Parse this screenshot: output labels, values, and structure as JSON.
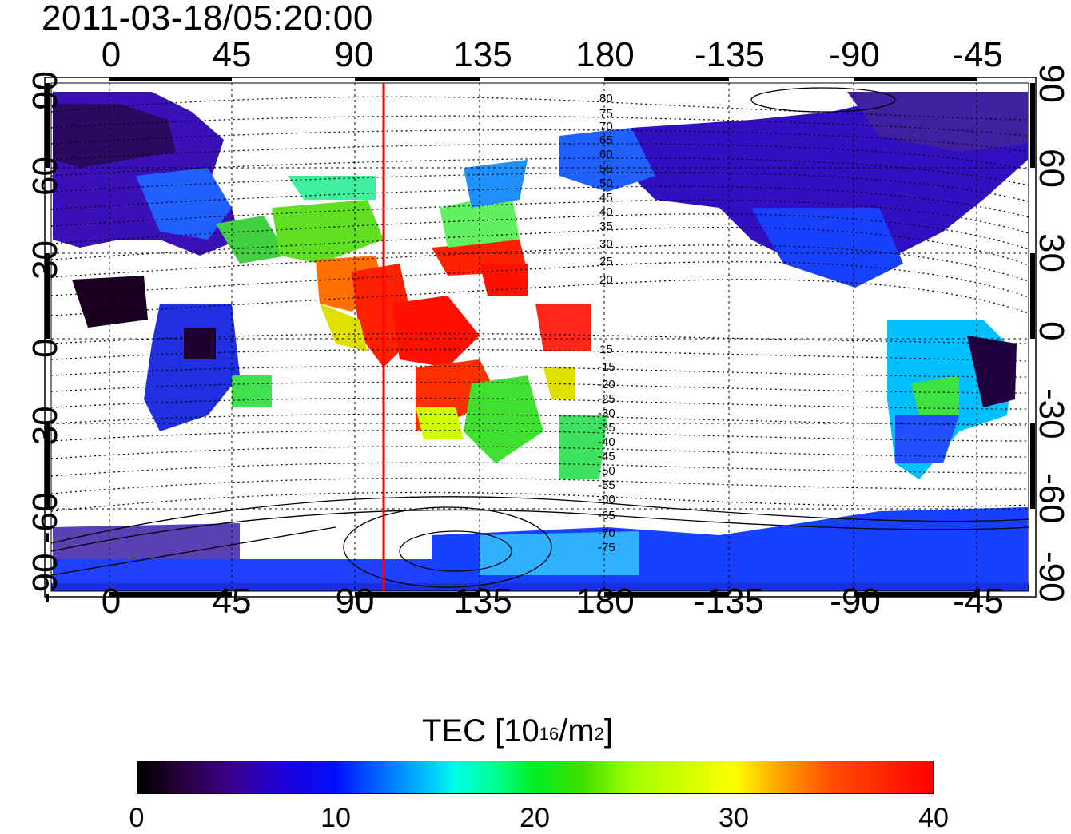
{
  "timestamp": "2011-03-18/05:20:00",
  "map": {
    "top_longitude_labels": [
      "0",
      "45",
      "90",
      "135",
      "180",
      "-135",
      "-90",
      "-45"
    ],
    "bottom_longitude_labels": [
      "0",
      "45",
      "90",
      "135",
      "180",
      "-135",
      "-90",
      "-45"
    ],
    "left_latitude_labels": [
      "90",
      "60",
      "30",
      "0",
      "-30",
      "-60",
      "-90"
    ],
    "right_latitude_labels": [
      "90",
      "60",
      "30",
      "0",
      "-30",
      "-60",
      "-90"
    ],
    "contour_labels": [
      "80",
      "75",
      "70",
      "65",
      "60",
      "55",
      "50",
      "45",
      "40",
      "35",
      "30",
      "25",
      "20",
      "15",
      "-15",
      "-20",
      "-25",
      "-30",
      "-35",
      "-40",
      "-45",
      "-50",
      "-55",
      "-60",
      "-65",
      "-70",
      "-75"
    ],
    "reference_line_color": "#ff0000",
    "reference_longitude": 100
  },
  "colorbar": {
    "title_main": "TEC  [10",
    "title_sup1": "16",
    "title_mid": "/m",
    "title_sup2": "2",
    "title_end": "]",
    "tick_labels": [
      "0",
      "10",
      "20",
      "30",
      "40"
    ],
    "min": 0,
    "max": 40
  }
}
